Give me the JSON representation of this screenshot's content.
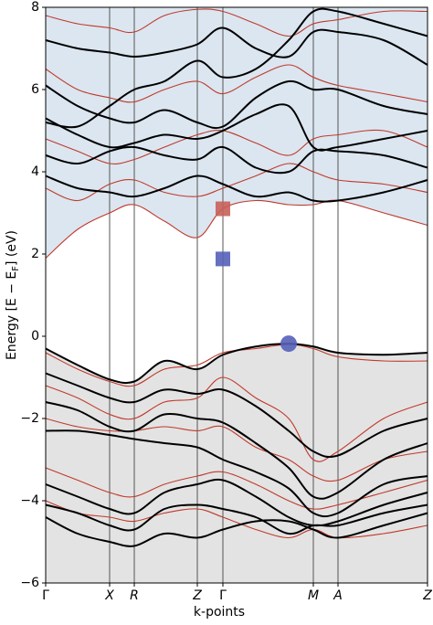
{
  "chart_data": {
    "type": "line",
    "ylabel": "Energy [E − E",
    "ylabel_sub": "F",
    "ylabel_end": "] (eV)",
    "xlabel": "k-points",
    "xlim": [
      0,
      418
    ],
    "ylim": [
      -6,
      8
    ],
    "xticks": [
      {
        "value": 0,
        "label": "Γ"
      },
      {
        "value": 70,
        "label": "X"
      },
      {
        "value": 97,
        "label": "R"
      },
      {
        "value": 166,
        "label": "Z"
      },
      {
        "value": 194,
        "label": "Γ"
      },
      {
        "value": 293,
        "label": "M"
      },
      {
        "value": 320,
        "label": "A"
      },
      {
        "value": 418,
        "label": "Z"
      }
    ],
    "yticks": [
      {
        "value": -6,
        "label": "−6"
      },
      {
        "value": -4,
        "label": "−4"
      },
      {
        "value": -2,
        "label": "−2"
      },
      0,
      2,
      4,
      6,
      8
    ],
    "x": [
      0,
      35,
      70,
      97,
      130,
      166,
      194,
      230,
      266,
      293,
      320,
      370,
      418
    ],
    "series": [
      {
        "color": "#c0392b",
        "fill_above": "#dbe6f0",
        "values": [
          1.9,
          2.6,
          3.0,
          3.2,
          2.8,
          2.4,
          3.1,
          3.3,
          3.2,
          3.2,
          3.3,
          3.0,
          2.7
        ]
      },
      {
        "color": "#000000",
        "fill_below": "#e3e3e3",
        "values": [
          -0.3,
          -0.7,
          -1.05,
          -1.1,
          -0.6,
          -0.8,
          -0.45,
          -0.25,
          -0.18,
          -0.25,
          -0.4,
          -0.45,
          -0.4
        ]
      },
      {
        "color": "#c0392b",
        "values": [
          3.6,
          3.3,
          3.7,
          3.8,
          3.5,
          3.4,
          3.6,
          3.9,
          4.2,
          4.0,
          3.8,
          3.7,
          3.5
        ]
      },
      {
        "color": "#c0392b",
        "values": [
          4.8,
          4.5,
          4.2,
          4.3,
          4.6,
          4.9,
          5.0,
          4.7,
          4.4,
          4.8,
          4.9,
          5.0,
          4.6
        ]
      },
      {
        "color": "#c0392b",
        "values": [
          6.5,
          6.0,
          5.8,
          5.7,
          6.0,
          6.2,
          5.9,
          6.3,
          6.6,
          6.3,
          6.1,
          5.9,
          5.7
        ]
      },
      {
        "color": "#c0392b",
        "values": [
          7.8,
          7.6,
          7.5,
          7.4,
          7.8,
          7.95,
          7.9,
          7.6,
          7.3,
          7.6,
          7.7,
          7.9,
          7.9
        ]
      },
      {
        "color": "#c0392b",
        "values": [
          -0.4,
          -0.8,
          -1.1,
          -1.2,
          -0.8,
          -0.7,
          -0.4,
          -0.3,
          -0.2,
          -0.3,
          -0.5,
          -0.6,
          -0.6
        ]
      },
      {
        "color": "#c0392b",
        "values": [
          -1.2,
          -1.5,
          -1.9,
          -2.0,
          -1.6,
          -1.5,
          -1.0,
          -1.5,
          -2.0,
          -3.0,
          -2.8,
          -2.0,
          -1.6
        ]
      },
      {
        "color": "#c0392b",
        "values": [
          -2.0,
          -2.2,
          -2.3,
          -2.3,
          -2.2,
          -2.3,
          -2.2,
          -2.7,
          -3.0,
          -3.4,
          -3.5,
          -3.0,
          -2.8
        ]
      },
      {
        "color": "#c0392b",
        "values": [
          -3.2,
          -3.5,
          -3.8,
          -3.9,
          -3.6,
          -3.4,
          -3.3,
          -3.6,
          -4.0,
          -4.2,
          -4.1,
          -3.8,
          -3.5
        ]
      },
      {
        "color": "#c0392b",
        "values": [
          -4.0,
          -4.3,
          -4.4,
          -4.5,
          -4.3,
          -4.2,
          -4.4,
          -4.7,
          -4.9,
          -4.7,
          -4.9,
          -4.8,
          -4.6
        ]
      },
      {
        "color": "#000000",
        "values": [
          3.9,
          3.6,
          3.5,
          3.4,
          3.6,
          3.9,
          3.7,
          3.4,
          3.5,
          3.3,
          3.3,
          3.5,
          3.8
        ]
      },
      {
        "color": "#000000",
        "values": [
          4.4,
          4.2,
          4.5,
          4.6,
          4.4,
          4.3,
          4.6,
          4.1,
          4.0,
          4.5,
          4.5,
          4.4,
          4.1
        ]
      },
      {
        "color": "#000000",
        "values": [
          5.3,
          4.9,
          4.6,
          4.7,
          4.9,
          4.8,
          5.0,
          5.4,
          5.6,
          4.6,
          4.6,
          4.8,
          5.0
        ]
      },
      {
        "color": "#000000",
        "values": [
          6.1,
          5.6,
          5.3,
          5.2,
          5.5,
          5.2,
          5.1,
          5.8,
          6.2,
          6.0,
          6.0,
          5.6,
          5.4
        ]
      },
      {
        "color": "#000000",
        "values": [
          7.2,
          7.0,
          6.9,
          6.8,
          6.9,
          7.1,
          7.5,
          7.0,
          6.8,
          7.4,
          7.4,
          7.2,
          6.6
        ]
      },
      {
        "color": "#000000",
        "values": [
          5.2,
          5.1,
          5.6,
          6.0,
          6.2,
          6.7,
          6.3,
          6.5,
          7.2,
          7.9,
          7.9,
          7.6,
          7.3
        ]
      },
      {
        "color": "#000000",
        "values": [
          -0.9,
          -1.2,
          -1.5,
          -1.6,
          -1.3,
          -1.4,
          -1.3,
          -1.7,
          -2.3,
          -2.8,
          -2.9,
          -2.3,
          -2.0
        ]
      },
      {
        "color": "#000000",
        "values": [
          -1.6,
          -1.8,
          -2.2,
          -2.3,
          -1.9,
          -2.0,
          -2.1,
          -2.6,
          -3.2,
          -3.9,
          -3.8,
          -3.0,
          -2.6
        ]
      },
      {
        "color": "#000000",
        "values": [
          -2.3,
          -2.3,
          -2.4,
          -2.5,
          -2.6,
          -2.7,
          -3.0,
          -3.3,
          -3.7,
          -4.3,
          -4.3,
          -3.6,
          -3.4
        ]
      },
      {
        "color": "#000000",
        "values": [
          -3.6,
          -3.9,
          -4.2,
          -4.3,
          -3.8,
          -3.6,
          -3.5,
          -3.9,
          -4.4,
          -4.6,
          -4.5,
          -4.1,
          -3.8
        ]
      },
      {
        "color": "#000000",
        "values": [
          -4.1,
          -4.3,
          -4.6,
          -4.7,
          -4.2,
          -4.1,
          -4.2,
          -4.4,
          -4.8,
          -4.6,
          -4.6,
          -4.3,
          -4.1
        ]
      },
      {
        "color": "#000000",
        "values": [
          -4.4,
          -4.8,
          -5.0,
          -5.1,
          -4.8,
          -4.9,
          -4.7,
          -4.5,
          -4.5,
          -4.7,
          -4.9,
          -4.6,
          -4.3
        ]
      }
    ],
    "markers": [
      {
        "x": 194,
        "y": 3.1,
        "shape": "square",
        "color": "#c8605a"
      },
      {
        "x": 194,
        "y": 1.88,
        "shape": "square",
        "color": "#5560b8"
      },
      {
        "x": 266,
        "y": -0.18,
        "shape": "circle",
        "color": "#5560b8"
      }
    ]
  }
}
